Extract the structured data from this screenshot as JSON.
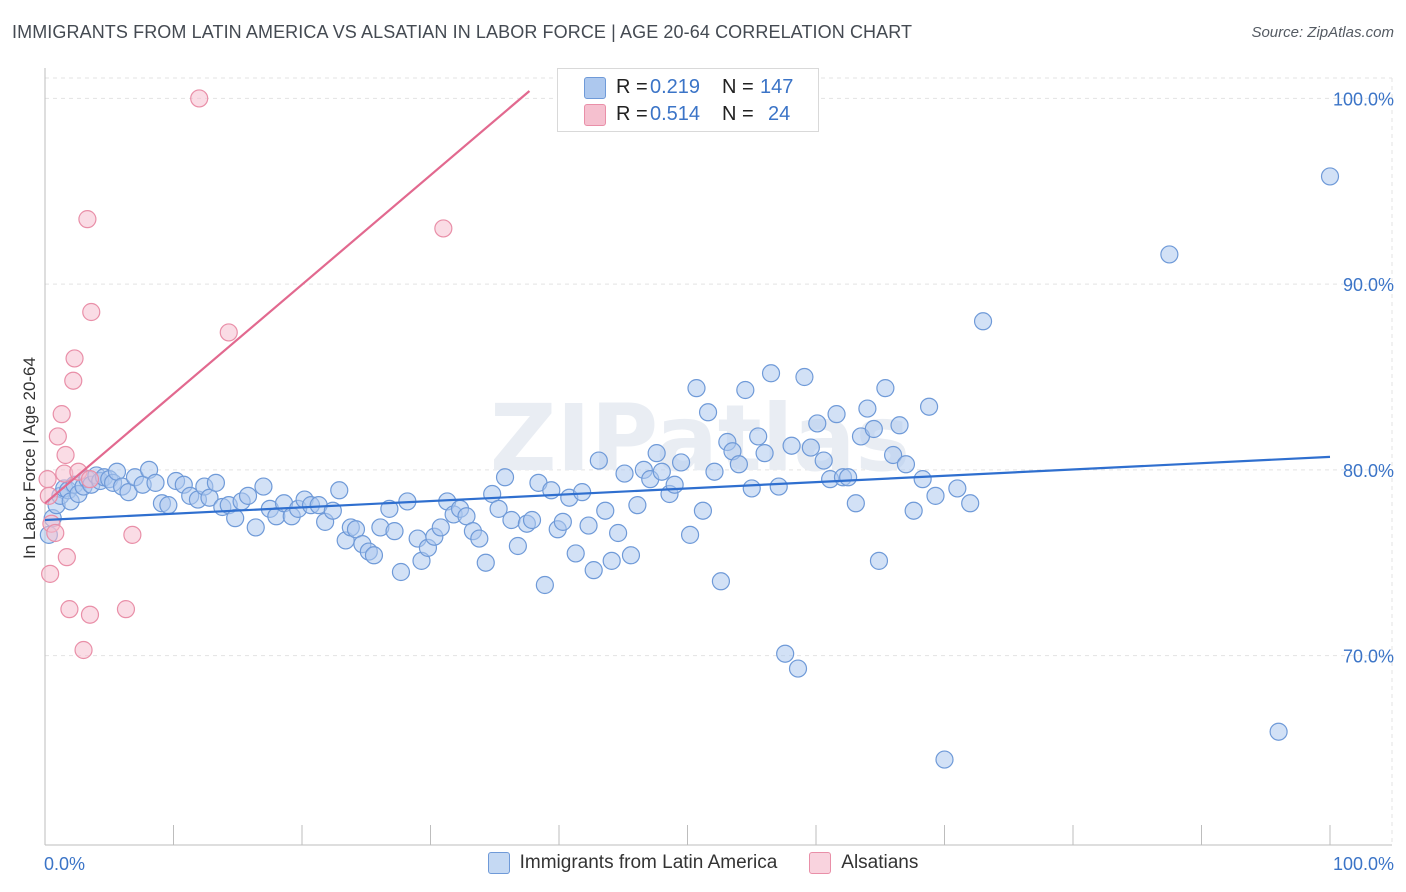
{
  "title": "IMMIGRANTS FROM LATIN AMERICA VS ALSATIAN IN LABOR FORCE | AGE 20-64 CORRELATION CHART",
  "source": "Source: ZipAtlas.com",
  "watermark": "ZIPatlas",
  "colors": {
    "blue_fill": "#adc8ee",
    "blue_stroke": "#6f9ad8",
    "blue_line": "#2f6fcf",
    "pink_fill": "#f5c0cf",
    "pink_stroke": "#e98fa8",
    "pink_line": "#e2698f",
    "axis_text": "#3b74c7",
    "grid": "#e3e3e3"
  },
  "stats": {
    "r_label": "R =",
    "n_label": "N =",
    "series1": {
      "r": "0.219",
      "n": "147"
    },
    "series2": {
      "r": "0.514",
      "n": "24"
    }
  },
  "chart_data": {
    "type": "scatter",
    "title": "IMMIGRANTS FROM LATIN AMERICA VS ALSATIAN IN LABOR FORCE | AGE 20-64 CORRELATION CHART",
    "xlabel": "",
    "ylabel": "In Labor Force | Age 20-64",
    "xlim": [
      0,
      100
    ],
    "ylim": [
      59.8,
      101.1
    ],
    "x_tick_labels": [
      "0.0%",
      "100.0%"
    ],
    "y_ticks": [
      70,
      80,
      90,
      100
    ],
    "y_tick_labels": [
      "70.0%",
      "80.0%",
      "90.0%",
      "100.0%"
    ],
    "legend_position": "bottom",
    "series": [
      {
        "name": "Immigrants from Latin America",
        "color": "blue",
        "r": 0.219,
        "n": 147,
        "trend": {
          "x": [
            0,
            100
          ],
          "y": [
            77.3,
            80.7
          ]
        },
        "points": [
          [
            0.3,
            76.5
          ],
          [
            0.6,
            77.4
          ],
          [
            0.9,
            78.1
          ],
          [
            1.2,
            78.6
          ],
          [
            1.5,
            79.0
          ],
          [
            1.8,
            78.9
          ],
          [
            2.0,
            78.3
          ],
          [
            2.3,
            79.2
          ],
          [
            2.6,
            78.7
          ],
          [
            3.0,
            79.1
          ],
          [
            3.3,
            79.5
          ],
          [
            3.6,
            79.2
          ],
          [
            4.0,
            79.7
          ],
          [
            4.3,
            79.4
          ],
          [
            4.6,
            79.6
          ],
          [
            5.0,
            79.5
          ],
          [
            5.3,
            79.3
          ],
          [
            5.6,
            79.9
          ],
          [
            6.0,
            79.1
          ],
          [
            6.5,
            78.8
          ],
          [
            7.0,
            79.6
          ],
          [
            7.6,
            79.2
          ],
          [
            8.1,
            80.0
          ],
          [
            8.6,
            79.3
          ],
          [
            9.1,
            78.2
          ],
          [
            9.6,
            78.1
          ],
          [
            10.2,
            79.4
          ],
          [
            10.8,
            79.2
          ],
          [
            11.3,
            78.6
          ],
          [
            11.9,
            78.4
          ],
          [
            12.4,
            79.1
          ],
          [
            12.8,
            78.5
          ],
          [
            13.3,
            79.3
          ],
          [
            13.8,
            78.0
          ],
          [
            14.3,
            78.1
          ],
          [
            14.8,
            77.4
          ],
          [
            15.3,
            78.3
          ],
          [
            15.8,
            78.6
          ],
          [
            16.4,
            76.9
          ],
          [
            17.0,
            79.1
          ],
          [
            17.5,
            77.9
          ],
          [
            18.0,
            77.5
          ],
          [
            18.6,
            78.2
          ],
          [
            19.2,
            77.5
          ],
          [
            19.7,
            77.9
          ],
          [
            20.2,
            78.4
          ],
          [
            20.7,
            78.1
          ],
          [
            21.3,
            78.1
          ],
          [
            21.8,
            77.2
          ],
          [
            22.4,
            77.8
          ],
          [
            22.9,
            78.9
          ],
          [
            23.4,
            76.2
          ],
          [
            23.8,
            76.9
          ],
          [
            24.2,
            76.8
          ],
          [
            24.7,
            76.0
          ],
          [
            25.2,
            75.6
          ],
          [
            25.6,
            75.4
          ],
          [
            26.1,
            76.9
          ],
          [
            26.8,
            77.9
          ],
          [
            27.2,
            76.7
          ],
          [
            27.7,
            74.5
          ],
          [
            28.2,
            78.3
          ],
          [
            29.0,
            76.3
          ],
          [
            29.3,
            75.1
          ],
          [
            29.8,
            75.8
          ],
          [
            30.3,
            76.4
          ],
          [
            30.8,
            76.9
          ],
          [
            31.3,
            78.3
          ],
          [
            31.8,
            77.6
          ],
          [
            32.3,
            77.9
          ],
          [
            32.8,
            77.5
          ],
          [
            33.3,
            76.7
          ],
          [
            33.8,
            76.3
          ],
          [
            34.3,
            75.0
          ],
          [
            34.8,
            78.7
          ],
          [
            35.3,
            77.9
          ],
          [
            35.8,
            79.6
          ],
          [
            36.3,
            77.3
          ],
          [
            36.8,
            75.9
          ],
          [
            37.5,
            77.1
          ],
          [
            37.9,
            77.3
          ],
          [
            38.4,
            79.3
          ],
          [
            38.9,
            73.8
          ],
          [
            39.4,
            78.9
          ],
          [
            39.9,
            76.8
          ],
          [
            40.3,
            77.2
          ],
          [
            40.8,
            78.5
          ],
          [
            41.3,
            75.5
          ],
          [
            41.8,
            78.8
          ],
          [
            42.3,
            77.0
          ],
          [
            42.7,
            74.6
          ],
          [
            43.1,
            80.5
          ],
          [
            43.6,
            77.8
          ],
          [
            44.1,
            75.1
          ],
          [
            44.6,
            76.6
          ],
          [
            45.1,
            79.8
          ],
          [
            45.6,
            75.4
          ],
          [
            46.1,
            78.1
          ],
          [
            46.6,
            80.0
          ],
          [
            47.1,
            79.5
          ],
          [
            47.6,
            80.9
          ],
          [
            48.0,
            79.9
          ],
          [
            48.6,
            78.7
          ],
          [
            49.0,
            79.2
          ],
          [
            49.5,
            80.4
          ],
          [
            50.2,
            76.5
          ],
          [
            50.7,
            84.4
          ],
          [
            51.2,
            77.8
          ],
          [
            51.6,
            83.1
          ],
          [
            52.1,
            79.9
          ],
          [
            52.6,
            74.0
          ],
          [
            53.1,
            81.5
          ],
          [
            53.5,
            81.0
          ],
          [
            54.0,
            80.3
          ],
          [
            54.5,
            84.3
          ],
          [
            55.0,
            79.0
          ],
          [
            55.5,
            81.8
          ],
          [
            56.0,
            80.9
          ],
          [
            56.5,
            85.2
          ],
          [
            57.1,
            79.1
          ],
          [
            57.6,
            70.1
          ],
          [
            58.1,
            81.3
          ],
          [
            58.6,
            69.3
          ],
          [
            59.1,
            85.0
          ],
          [
            59.6,
            81.2
          ],
          [
            60.1,
            82.5
          ],
          [
            60.6,
            80.5
          ],
          [
            61.1,
            79.5
          ],
          [
            61.6,
            83.0
          ],
          [
            62.1,
            79.6
          ],
          [
            62.5,
            79.6
          ],
          [
            63.1,
            78.2
          ],
          [
            63.5,
            81.8
          ],
          [
            64.0,
            83.3
          ],
          [
            64.5,
            82.2
          ],
          [
            64.9,
            75.1
          ],
          [
            65.4,
            84.4
          ],
          [
            66.0,
            80.8
          ],
          [
            66.5,
            82.4
          ],
          [
            67.0,
            80.3
          ],
          [
            67.6,
            77.8
          ],
          [
            68.3,
            79.5
          ],
          [
            68.8,
            83.4
          ],
          [
            69.3,
            78.6
          ],
          [
            70.0,
            64.4
          ],
          [
            71.0,
            79.0
          ],
          [
            72.0,
            78.2
          ],
          [
            73.0,
            88.0
          ],
          [
            87.5,
            91.6
          ],
          [
            96.0,
            65.9
          ],
          [
            100.0,
            95.8
          ]
        ]
      },
      {
        "name": "Alsatians",
        "color": "pink",
        "r": 0.514,
        "n": 24,
        "trend": {
          "x": [
            0,
            37.7
          ],
          "y": [
            78.2,
            100.4
          ]
        },
        "points": [
          [
            0.2,
            79.5
          ],
          [
            0.3,
            78.6
          ],
          [
            0.4,
            74.4
          ],
          [
            0.5,
            77.1
          ],
          [
            0.8,
            76.6
          ],
          [
            1.0,
            81.8
          ],
          [
            1.3,
            83.0
          ],
          [
            1.5,
            79.8
          ],
          [
            1.6,
            80.8
          ],
          [
            1.7,
            75.3
          ],
          [
            1.9,
            72.5
          ],
          [
            2.2,
            84.8
          ],
          [
            2.3,
            86.0
          ],
          [
            2.6,
            79.9
          ],
          [
            3.0,
            70.3
          ],
          [
            3.3,
            93.5
          ],
          [
            3.5,
            79.5
          ],
          [
            3.5,
            72.2
          ],
          [
            3.6,
            88.5
          ],
          [
            6.3,
            72.5
          ],
          [
            6.8,
            76.5
          ],
          [
            12.0,
            100.0
          ],
          [
            14.3,
            87.4
          ],
          [
            31.0,
            93.0
          ]
        ]
      }
    ]
  },
  "legend": {
    "item1_label": "Immigrants from Latin America",
    "item2_label": "Alsatians"
  }
}
